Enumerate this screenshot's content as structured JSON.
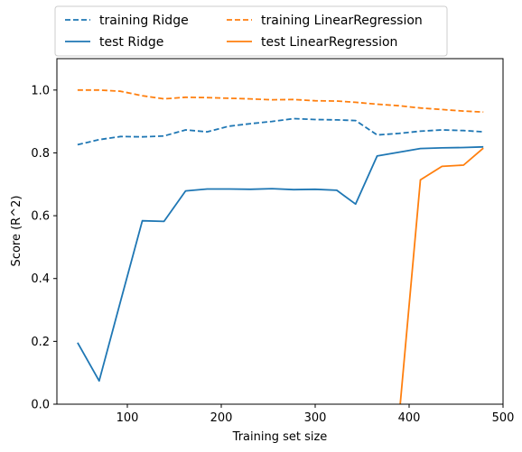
{
  "chart_data": {
    "type": "line",
    "xlabel": "Training set size",
    "ylabel": "Score (R^2)",
    "xlim": [
      25,
      500
    ],
    "ylim": [
      0,
      1.1
    ],
    "grid": false,
    "legend_position": "above-plot",
    "x_ticks": [
      100,
      200,
      300,
      400,
      500
    ],
    "y_ticks": [
      0.0,
      0.2,
      0.4,
      0.6,
      0.8,
      1.0
    ],
    "x_tick_labels": [
      "100",
      "200",
      "300",
      "400",
      "500"
    ],
    "y_tick_labels": [
      "0.0",
      "0.2",
      "0.4",
      "0.6",
      "0.8",
      "1.0"
    ],
    "series": [
      {
        "name": "training Ridge",
        "color": "#1f77b4",
        "style": "dashed",
        "x": [
          47,
          70,
          93,
          116,
          139,
          162,
          185,
          208,
          231,
          254,
          277,
          300,
          323,
          343,
          366,
          389,
          412,
          435,
          458,
          479
        ],
        "y": [
          0.826,
          0.842,
          0.852,
          0.851,
          0.854,
          0.873,
          0.867,
          0.885,
          0.893,
          0.9,
          0.909,
          0.906,
          0.905,
          0.903,
          0.857,
          0.862,
          0.869,
          0.873,
          0.871,
          0.867
        ]
      },
      {
        "name": "test Ridge",
        "color": "#1f77b4",
        "style": "solid",
        "x": [
          47,
          70,
          93,
          116,
          139,
          162,
          185,
          208,
          231,
          254,
          277,
          300,
          323,
          343,
          366,
          389,
          412,
          435,
          458,
          479
        ],
        "y": [
          0.196,
          0.074,
          0.33,
          0.584,
          0.582,
          0.679,
          0.685,
          0.685,
          0.684,
          0.686,
          0.683,
          0.684,
          0.681,
          0.637,
          0.79,
          0.802,
          0.814,
          0.816,
          0.817,
          0.819
        ]
      },
      {
        "name": "training LinearRegression",
        "color": "#ff7f0e",
        "style": "dashed",
        "x": [
          47,
          70,
          93,
          116,
          139,
          162,
          185,
          208,
          231,
          254,
          277,
          300,
          323,
          343,
          366,
          389,
          412,
          435,
          458,
          479
        ],
        "y": [
          1.0,
          1.0,
          0.996,
          0.982,
          0.972,
          0.977,
          0.976,
          0.974,
          0.972,
          0.969,
          0.97,
          0.966,
          0.965,
          0.961,
          0.955,
          0.95,
          0.943,
          0.938,
          0.933,
          0.93
        ]
      },
      {
        "name": "test LinearRegression",
        "color": "#ff7f0e",
        "style": "solid",
        "x": [
          389,
          412,
          435,
          458,
          479
        ],
        "y": [
          -0.05,
          0.714,
          0.757,
          0.761,
          0.815
        ]
      }
    ]
  }
}
